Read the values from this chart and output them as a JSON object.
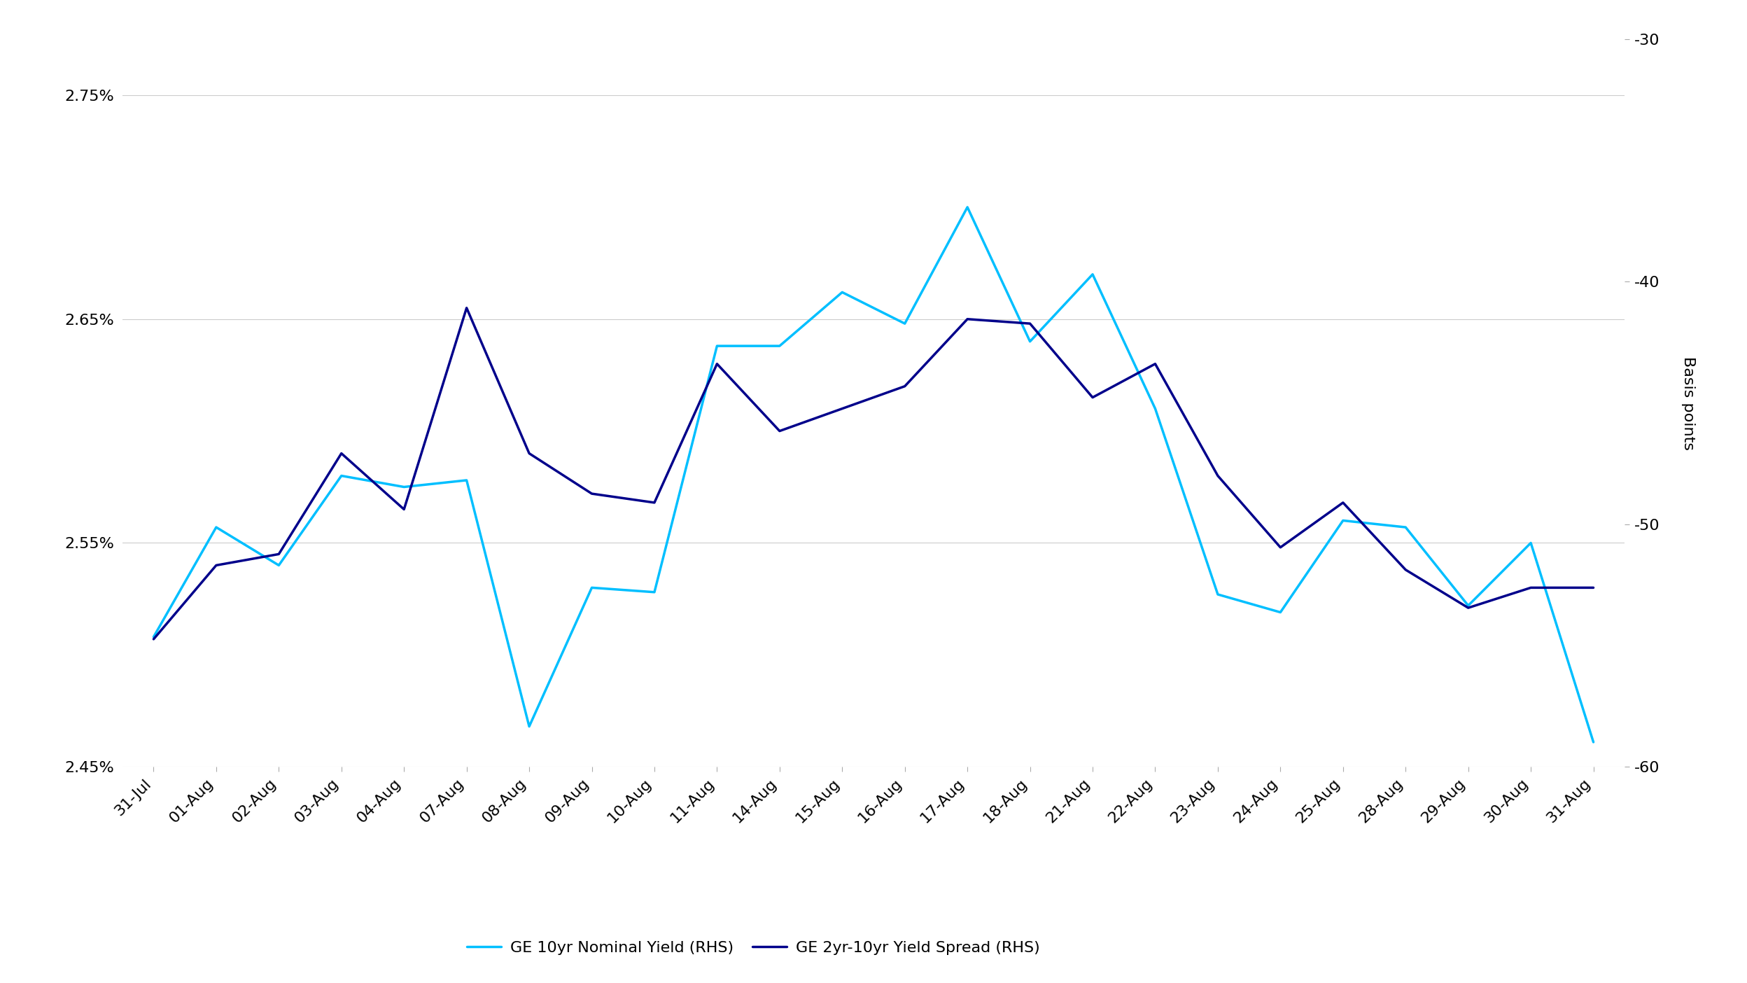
{
  "dates": [
    "31-Jul",
    "01-Aug",
    "02-Aug",
    "03-Aug",
    "04-Aug",
    "07-Aug",
    "08-Aug",
    "09-Aug",
    "10-Aug",
    "11-Aug",
    "14-Aug",
    "15-Aug",
    "16-Aug",
    "17-Aug",
    "18-Aug",
    "21-Aug",
    "22-Aug",
    "23-Aug",
    "24-Aug",
    "25-Aug",
    "28-Aug",
    "29-Aug",
    "30-Aug",
    "31-Aug"
  ],
  "ge_10yr": [
    2.508,
    2.557,
    2.54,
    2.58,
    2.575,
    2.578,
    2.468,
    2.53,
    2.528,
    2.638,
    2.638,
    2.662,
    2.648,
    2.7,
    2.64,
    2.67,
    2.61,
    2.527,
    2.519,
    2.56,
    2.557,
    2.522,
    2.55,
    2.461
  ],
  "ge_spread_left": [
    2.507,
    2.54,
    2.545,
    2.59,
    2.565,
    2.655,
    2.59,
    2.572,
    2.568,
    2.63,
    2.6,
    2.61,
    2.62,
    2.65,
    2.648,
    2.615,
    2.63,
    2.58,
    2.548,
    2.568,
    2.538,
    2.521,
    2.53,
    2.53
  ],
  "left_ylim": [
    2.45,
    2.775
  ],
  "right_ylim": [
    -60,
    -30
  ],
  "left_yticks": [
    2.45,
    2.55,
    2.65,
    2.75
  ],
  "right_yticks": [
    -60,
    -50,
    -40,
    -30
  ],
  "left_ytick_labels": [
    "2.45%",
    "2.55%",
    "2.65%",
    "2.75%"
  ],
  "right_ytick_labels": [
    "-60",
    "-50",
    "-40",
    "-30"
  ],
  "color_10yr": "#00BFFF",
  "color_spread": "#00008B",
  "legend_label_10yr": "GE 10yr Nominal Yield (RHS)",
  "legend_label_spread": "GE 2yr-10yr Yield Spread (RHS)",
  "ylabel_right": "Basis points",
  "background_color": "#ffffff",
  "grid_color": "#cccccc",
  "tick_label_fontsize": 16,
  "legend_fontsize": 16,
  "ylabel_fontsize": 16,
  "line_width": 2.5
}
